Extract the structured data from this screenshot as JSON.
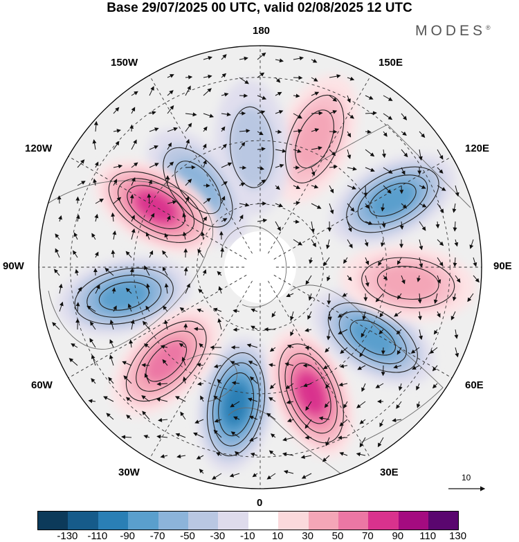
{
  "title": "Base 29/07/2025 00 UTC, valid 02/08/2025 12 UTC",
  "brand": "MODES",
  "brand_mark": "®",
  "longitude_labels": {
    "top": "180",
    "bottom": "0",
    "left": "90W",
    "right": "90E",
    "upper_left": "150W",
    "upper_right": "150E",
    "mid_upper_left": "120W",
    "mid_upper_right": "120E",
    "mid_lower_left": "60W",
    "mid_lower_right": "60E",
    "lower_left": "30W",
    "lower_right": "30E"
  },
  "reference_vector": {
    "value": "10"
  },
  "colorbar": {
    "ticks": [
      "-130",
      "-110",
      "-90",
      "-70",
      "-50",
      "-30",
      "-10",
      "10",
      "30",
      "50",
      "70",
      "90",
      "110",
      "130"
    ],
    "colors": [
      "#0c3a5a",
      "#165b8a",
      "#2a7fb5",
      "#5a9fcd",
      "#8cb4da",
      "#b9c7e2",
      "#dedbec",
      "#ffffff",
      "#fbd9dc",
      "#f4a6b7",
      "#ec77a4",
      "#d9328d",
      "#a40b80",
      "#5a066f"
    ]
  },
  "anomalies": [
    {
      "sign": -1,
      "level": 4,
      "lon_deg": 350,
      "colat_deg": 44
    },
    {
      "sign": 1,
      "level": 4,
      "lon_deg": 22,
      "colat_deg": 43
    },
    {
      "sign": -1,
      "level": 3,
      "lon_deg": 58,
      "colat_deg": 42
    },
    {
      "sign": 1,
      "level": 2,
      "lon_deg": 84,
      "colat_deg": 47
    },
    {
      "sign": -1,
      "level": 3,
      "lon_deg": 117,
      "colat_deg": 47
    },
    {
      "sign": 1,
      "level": 2,
      "lon_deg": 157,
      "colat_deg": 44
    },
    {
      "sign": -1,
      "level": 1,
      "lon_deg": 184,
      "colat_deg": 38
    },
    {
      "sign": -1,
      "level": 2,
      "lon_deg": 218,
      "colat_deg": 32
    },
    {
      "sign": 1,
      "level": 4,
      "lon_deg": 240,
      "colat_deg": 38
    },
    {
      "sign": -1,
      "level": 3,
      "lon_deg": 282,
      "colat_deg": 44
    },
    {
      "sign": 1,
      "level": 3,
      "lon_deg": 315,
      "colat_deg": 42
    }
  ]
}
